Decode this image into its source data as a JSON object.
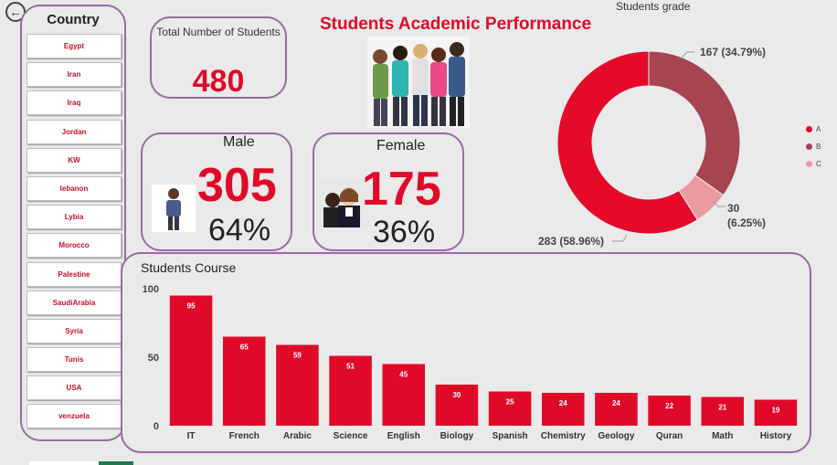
{
  "dashboard": {
    "title": "Students Academic Performance"
  },
  "nav": {
    "back_icon": "arrow-left-icon",
    "back_glyph": "←"
  },
  "country": {
    "title": "Country",
    "items": [
      "Egypt",
      "Iran",
      "Iraq",
      "Jordan",
      "KW",
      "lebanon",
      "Lybia",
      "Morocco",
      "Palestine",
      "SaudiArabia",
      "Syria",
      "Tunis",
      "USA",
      "venzuela"
    ]
  },
  "kpi": {
    "total_label": "Total Number of Students",
    "total_value": "480",
    "male_label": "Male",
    "male_value": "305",
    "male_pct": "64%",
    "female_label": "Female",
    "female_value": "175",
    "female_pct": "36%"
  },
  "colors": {
    "accent": "#e00a28",
    "grade_a": "#e50a28",
    "grade_b": "#a64452",
    "grade_c": "#ec9aa2",
    "border": "#9b6aa6"
  },
  "grade_chart": {
    "chart_data": {
      "type": "pie",
      "title": "Students grade",
      "categories": [
        "A",
        "B",
        "C"
      ],
      "values": [
        283,
        167,
        30
      ],
      "labels": [
        "283 (58.96%)",
        "167 (34.79%)",
        "30 (6.25%)"
      ],
      "legend_position": "right"
    }
  },
  "course_chart": {
    "chart_data": {
      "type": "bar",
      "title": "Students Course",
      "categories": [
        "IT",
        "French",
        "Arabic",
        "Science",
        "English",
        "Biology",
        "Spanish",
        "Chemistry",
        "Geology",
        "Quran",
        "Math",
        "History"
      ],
      "values": [
        95,
        65,
        59,
        51,
        45,
        30,
        25,
        24,
        24,
        22,
        21,
        19
      ],
      "y_ticks": [
        "0",
        "50",
        "100"
      ],
      "ylim": [
        0,
        100
      ],
      "grid": false
    }
  }
}
